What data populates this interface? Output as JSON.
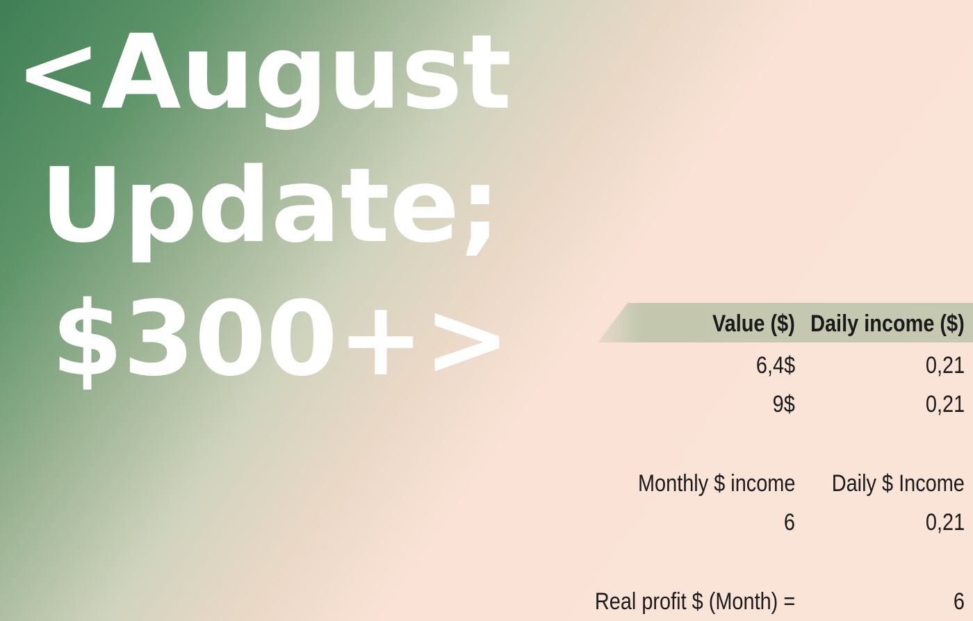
{
  "title": {
    "line1": "<August",
    "line2": "Update;",
    "line3": "$300+>"
  },
  "table": {
    "headers": {
      "value": "Value ($)",
      "daily_income": "Daily income ($)"
    },
    "rows": [
      {
        "value": "6,4$",
        "daily_income": "0,21"
      },
      {
        "value": "9$",
        "daily_income": "0,21"
      }
    ]
  },
  "summary": {
    "headers": {
      "monthly": "Monthly $ income",
      "daily": "Daily $ Income"
    },
    "monthly_value": "6",
    "daily_value": "0,21"
  },
  "profit": {
    "label": "Real profit $ (Month) =",
    "value": "6"
  },
  "colors": {
    "title_text": "#ffffff",
    "gradient_green": "#3f7f55",
    "background_peach": "#fae4d8",
    "header_band": "#c6c9b1"
  }
}
